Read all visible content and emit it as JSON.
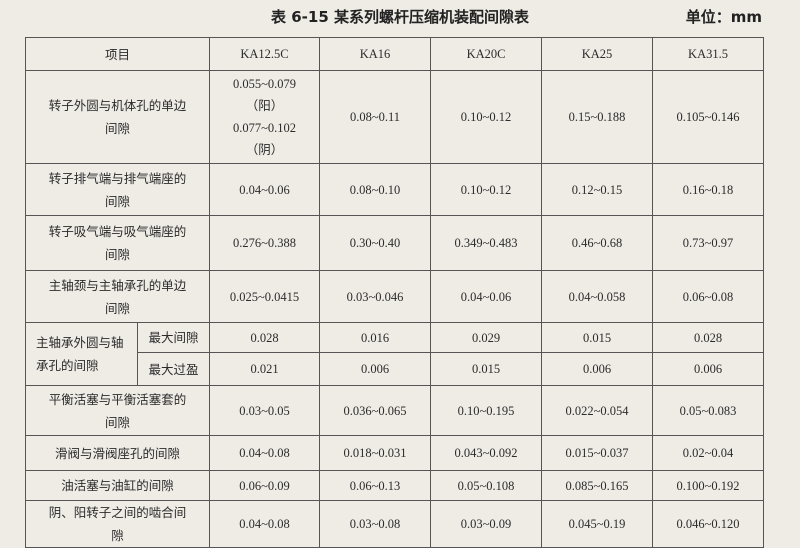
{
  "title": "表 6-15   某系列螺杆压缩机装配间隙表",
  "unit": "单位：mm",
  "table": {
    "headers": [
      "项目",
      "KA12.5C",
      "KA16",
      "KA20C",
      "KA25",
      "KA31.5"
    ],
    "rows": [
      {
        "item": "转子外圆与机体孔的单边间隙",
        "values": [
          "0.055~0.079（阳）0.077~0.102（阴）",
          "0.08~0.11",
          "0.10~0.12",
          "0.15~0.188",
          "0.105~0.146"
        ],
        "first_lines": [
          "0.055~0.079",
          "（阳）",
          "0.077~0.102",
          "（阴）"
        ]
      },
      {
        "item": "转子排气端与排气端座的间隙",
        "values": [
          "0.04~0.06",
          "0.08~0.10",
          "0.10~0.12",
          "0.12~0.15",
          "0.16~0.18"
        ]
      },
      {
        "item": "转子吸气端与吸气端座的间隙",
        "values": [
          "0.276~0.388",
          "0.30~0.40",
          "0.349~0.483",
          "0.46~0.68",
          "0.73~0.97"
        ]
      },
      {
        "item": "主轴颈与主轴承孔的单边间隙",
        "values": [
          "0.025~0.0415",
          "0.03~0.046",
          "0.04~0.06",
          "0.04~0.058",
          "0.06~0.08"
        ]
      },
      {
        "item": "主轴承外圆与轴承孔的间隙",
        "sub": "最大间隙",
        "values": [
          "0.028",
          "0.016",
          "0.029",
          "0.015",
          "0.028"
        ]
      },
      {
        "sub": "最大过盈",
        "values": [
          "0.021",
          "0.006",
          "0.015",
          "0.006",
          "0.006"
        ]
      },
      {
        "item": "平衡活塞与平衡活塞套的间隙",
        "values": [
          "0.03~0.05",
          "0.036~0.065",
          "0.10~0.195",
          "0.022~0.054",
          "0.05~0.083"
        ]
      },
      {
        "item": "滑阀与滑阀座孔的间隙",
        "values": [
          "0.04~0.08",
          "0.018~0.031",
          "0.043~0.092",
          "0.015~0.037",
          "0.02~0.04"
        ]
      },
      {
        "item": "油活塞与油缸的间隙",
        "values": [
          "0.06~0.09",
          "0.06~0.13",
          "0.05~0.108",
          "0.085~0.165",
          "0.100~0.192"
        ]
      },
      {
        "item": "阴、阳转子之间的啮合间隙",
        "values": [
          "0.04~0.08",
          "0.03~0.08",
          "0.03~0.09",
          "0.045~0.19",
          "0.046~0.120"
        ]
      }
    ]
  }
}
